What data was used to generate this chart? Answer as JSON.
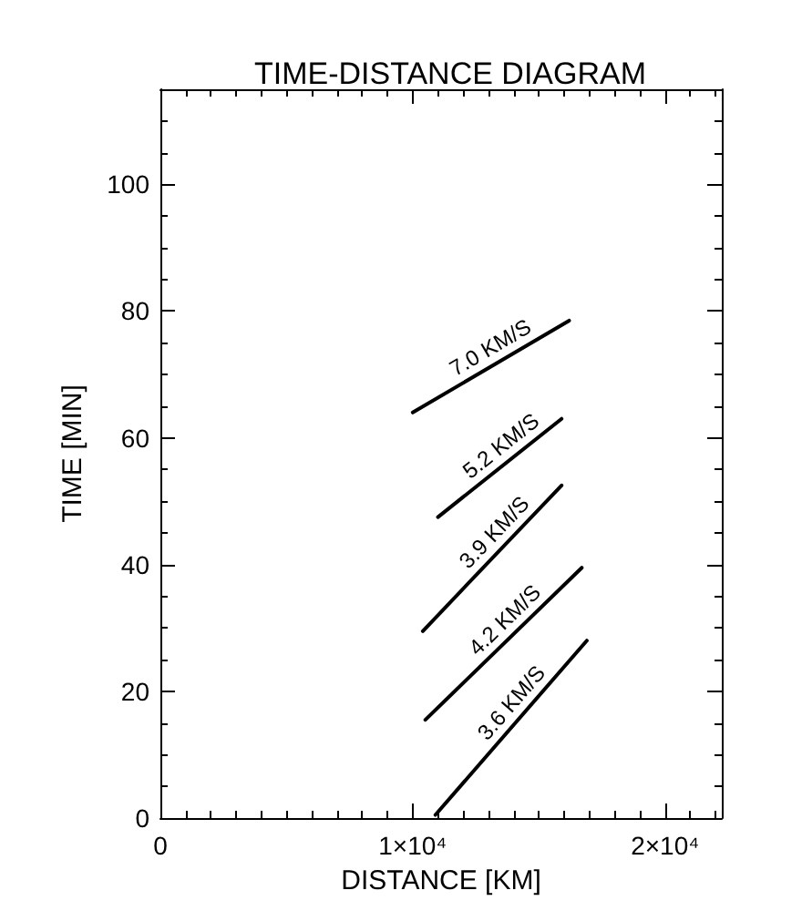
{
  "chart_data": {
    "type": "line",
    "title": "TIME-DISTANCE DIAGRAM",
    "xlabel": "DISTANCE [KM]",
    "ylabel": "TIME [MIN]",
    "xlim": [
      0,
      22250
    ],
    "ylim": [
      0,
      115
    ],
    "xticks": [
      0,
      {
        "value": 1000,
        "label": null
      },
      {
        "value": 2000,
        "label": null
      },
      {
        "value": 3000,
        "label": null
      },
      {
        "value": 4000,
        "label": null
      },
      {
        "value": 5000,
        "label": null
      },
      {
        "value": 6000,
        "label": null
      },
      {
        "value": 7000,
        "label": null
      },
      {
        "value": 8000,
        "label": null
      },
      {
        "value": 9000,
        "label": null
      },
      {
        "value": 10000,
        "label": "1×10⁴"
      },
      {
        "value": 11000,
        "label": null
      },
      {
        "value": 12000,
        "label": null
      },
      {
        "value": 13000,
        "label": null
      },
      {
        "value": 14000,
        "label": null
      },
      {
        "value": 15000,
        "label": null
      },
      {
        "value": 16000,
        "label": null
      },
      {
        "value": 17000,
        "label": null
      },
      {
        "value": 18000,
        "label": null
      },
      {
        "value": 19000,
        "label": null
      },
      {
        "value": 20000,
        "label": "2×10⁴"
      },
      {
        "value": 21000,
        "label": null
      },
      {
        "value": 22000,
        "label": null
      }
    ],
    "yticks": [
      0,
      {
        "value": 5,
        "label": null
      },
      {
        "value": 10,
        "label": null
      },
      {
        "value": 15,
        "label": null
      },
      20,
      {
        "value": 25,
        "label": null
      },
      {
        "value": 30,
        "label": null
      },
      {
        "value": 35,
        "label": null
      },
      40,
      {
        "value": 45,
        "label": null
      },
      {
        "value": 50,
        "label": null
      },
      {
        "value": 55,
        "label": null
      },
      60,
      {
        "value": 65,
        "label": null
      },
      {
        "value": 70,
        "label": null
      },
      {
        "value": 75,
        "label": null
      },
      80,
      {
        "value": 85,
        "label": null
      },
      {
        "value": 90,
        "label": null
      },
      {
        "value": 95,
        "label": null
      },
      100,
      {
        "value": 105,
        "label": null
      },
      {
        "value": 110,
        "label": null
      }
    ],
    "marker": "none",
    "line_style": "solid",
    "series": [
      {
        "color": "#000000",
        "x": [
          10000,
          16200
        ],
        "values": [
          64,
          78.5
        ]
      },
      {
        "color": "#000000",
        "x": [
          11000,
          15900
        ],
        "values": [
          47.5,
          63
        ]
      },
      {
        "color": "#000000",
        "x": [
          10400,
          15900
        ],
        "values": [
          29.5,
          52.5
        ]
      },
      {
        "color": "#000000",
        "x": [
          10500,
          16700
        ],
        "values": [
          15.5,
          39.5
        ]
      },
      {
        "color": "#000000",
        "x": [
          10900,
          16900
        ],
        "values": [
          0.5,
          28
        ]
      }
    ],
    "annotations": [
      {
        "text": "7.0 KM/S",
        "x": 13400,
        "y": 72
      },
      {
        "text": "5.2 KM/S",
        "x": 13900,
        "y": 56.7
      },
      {
        "text": "3.9 KM/S",
        "x": 13700,
        "y": 43.3
      },
      {
        "text": "4.2 KM/S",
        "x": 14100,
        "y": 29.4
      },
      {
        "text": "3.6 KM/S",
        "x": 14400,
        "y": 16.5
      }
    ]
  }
}
